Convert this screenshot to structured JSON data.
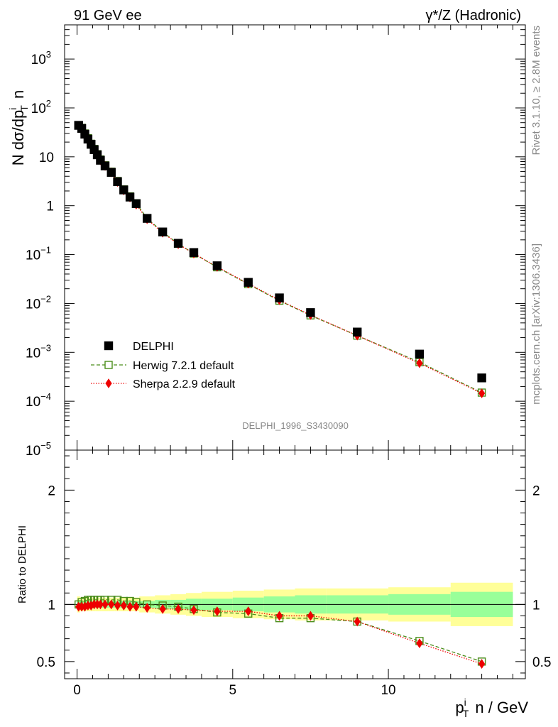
{
  "chart_data": {
    "type": "scatter",
    "title_left": "91 GeV ee",
    "title_right": "γ*/Z (Hadronic)",
    "ylabel_main": "N dσ/dpᵢT n",
    "ylabel_main_parts": {
      "base": "N dσ/dp",
      "sup": "i",
      "sub": "T",
      "tail": "n"
    },
    "ylabel_ratio": "Ratio to DELPHI",
    "xlabel": "pᵢT n / GeV",
    "xlabel_parts": {
      "base": "p",
      "sup": "i",
      "sub": "T",
      "tail": "n / GeV"
    },
    "watermark": "DELPHI_1996_S3430090",
    "side_text_top": "Rivet 3.1.10, ≥ 2.8M events",
    "side_text_bottom": "mcplots.cern.ch [arXiv:1306.3436]",
    "x_range": [
      -0.4,
      14.4
    ],
    "y_range_log": [
      1e-05,
      5000
    ],
    "ratio_range": [
      0.35,
      2.35
    ],
    "x_ticks": [
      {
        "v": 0,
        "label": "0"
      },
      {
        "v": 5,
        "label": "5"
      },
      {
        "v": 10,
        "label": "10"
      }
    ],
    "y_ticks": [
      {
        "v": 1e-05,
        "label": "10",
        "exp": "−5"
      },
      {
        "v": 0.0001,
        "label": "10",
        "exp": "−4"
      },
      {
        "v": 0.001,
        "label": "10",
        "exp": "−3"
      },
      {
        "v": 0.01,
        "label": "10",
        "exp": "−2"
      },
      {
        "v": 0.1,
        "label": "10",
        "exp": "−1"
      },
      {
        "v": 1,
        "label": "1",
        "exp": ""
      },
      {
        "v": 10,
        "label": "10",
        "exp": ""
      },
      {
        "v": 100,
        "label": "10",
        "exp": "2"
      },
      {
        "v": 1000,
        "label": "10",
        "exp": "3"
      }
    ],
    "ratio_ticks": [
      {
        "v": 0.5,
        "label": "0.5"
      },
      {
        "v": 1,
        "label": "1"
      },
      {
        "v": 2,
        "label": "2"
      }
    ],
    "x": [
      0.05,
      0.15,
      0.25,
      0.35,
      0.45,
      0.55,
      0.65,
      0.75,
      0.9,
      1.1,
      1.3,
      1.5,
      1.7,
      1.9,
      2.25,
      2.75,
      3.25,
      3.75,
      4.5,
      5.5,
      6.5,
      7.5,
      9.0,
      11.0,
      13.0
    ],
    "bin_edges": [
      0.0,
      0.1,
      0.2,
      0.3,
      0.4,
      0.5,
      0.6,
      0.7,
      0.8,
      1.0,
      1.2,
      1.4,
      1.6,
      1.8,
      2.0,
      2.5,
      3.0,
      3.5,
      4.0,
      5.0,
      6.0,
      7.0,
      8.0,
      10.0,
      12.0,
      14.0
    ],
    "series": [
      {
        "name": "DELPHI",
        "marker": "filled-square",
        "color": "#000000",
        "values": [
          44,
          38,
          29,
          23,
          18,
          14,
          11,
          8.5,
          6.5,
          4.8,
          3.1,
          2.1,
          1.5,
          1.1,
          0.55,
          0.29,
          0.17,
          0.11,
          0.059,
          0.027,
          0.013,
          0.0065,
          0.0026,
          0.00092,
          0.0003
        ]
      },
      {
        "name": "Herwig 7.2.1 default",
        "marker": "open-square",
        "color": "#4a8d1a",
        "values": [
          44,
          39,
          30,
          24,
          18.5,
          14.5,
          11.3,
          8.8,
          6.7,
          4.95,
          3.2,
          2.15,
          1.55,
          1.12,
          0.55,
          0.29,
          0.166,
          0.105,
          0.055,
          0.0248,
          0.0114,
          0.0057,
          0.0022,
          0.00063,
          0.00015
        ],
        "ratio": [
          1.0,
          1.02,
          1.03,
          1.04,
          1.04,
          1.04,
          1.04,
          1.04,
          1.04,
          1.04,
          1.04,
          1.03,
          1.03,
          1.02,
          1.0,
          0.99,
          0.98,
          0.96,
          0.93,
          0.92,
          0.88,
          0.88,
          0.85,
          0.68,
          0.5
        ]
      },
      {
        "name": "Sherpa 2.2.9 default",
        "marker": "filled-diamond",
        "color": "#ee0000",
        "values": [
          43,
          37,
          28,
          22.5,
          17.8,
          14,
          11,
          8.5,
          6.5,
          4.8,
          3.05,
          2.05,
          1.47,
          1.05,
          0.53,
          0.28,
          0.163,
          0.105,
          0.056,
          0.0255,
          0.0117,
          0.0058,
          0.0022,
          0.0006,
          0.000145
        ],
        "ratio": [
          0.98,
          0.98,
          0.98,
          0.99,
          0.99,
          1.0,
          1.0,
          1.0,
          1.0,
          1.0,
          0.99,
          0.99,
          0.98,
          0.98,
          0.97,
          0.96,
          0.96,
          0.95,
          0.94,
          0.94,
          0.9,
          0.9,
          0.85,
          0.66,
          0.48
        ]
      }
    ],
    "uncertainty_inner": [
      0.03,
      0.03,
      0.03,
      0.03,
      0.03,
      0.03,
      0.03,
      0.03,
      0.03,
      0.03,
      0.03,
      0.03,
      0.03,
      0.03,
      0.03,
      0.04,
      0.04,
      0.05,
      0.05,
      0.06,
      0.07,
      0.08,
      0.08,
      0.09,
      0.11
    ],
    "uncertainty_outer": [
      0.07,
      0.06,
      0.06,
      0.06,
      0.06,
      0.06,
      0.06,
      0.06,
      0.06,
      0.06,
      0.06,
      0.06,
      0.06,
      0.06,
      0.07,
      0.08,
      0.09,
      0.1,
      0.11,
      0.12,
      0.13,
      0.14,
      0.14,
      0.15,
      0.19
    ],
    "legend_position": "bottom-left",
    "colors": {
      "inner_band": "#99ff99",
      "outer_band": "#ffff99"
    }
  }
}
